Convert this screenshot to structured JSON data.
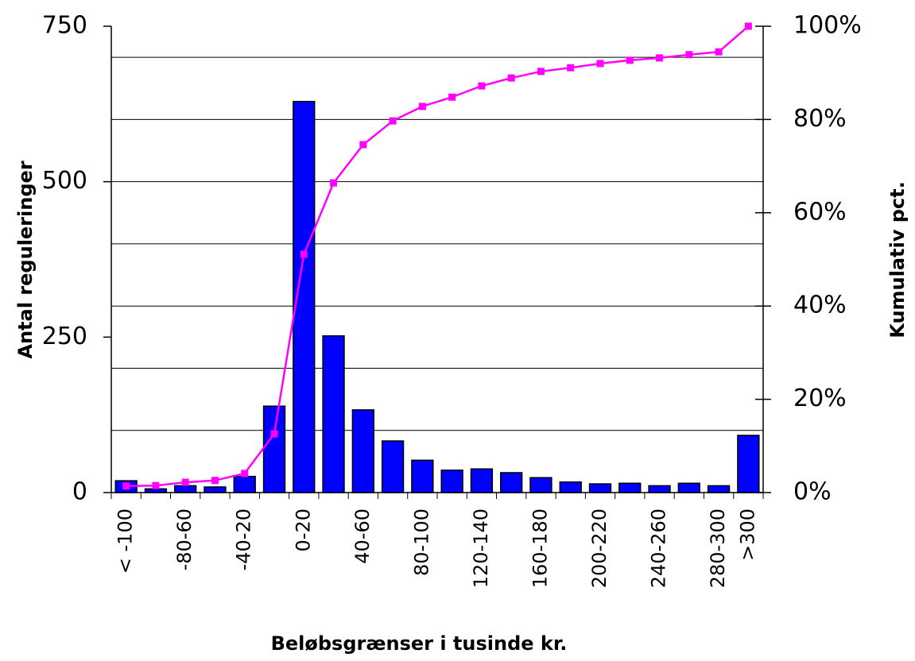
{
  "chart_data": {
    "type": "combo",
    "xlabel": "Beløbsgrænser i tusinde kr.",
    "ylabel": "Antal reguleringer",
    "y2label": "Kumulativ pct.",
    "categories": [
      "< -100",
      null,
      "-80-60",
      null,
      "-40-20",
      null,
      "0-20",
      null,
      "40-60",
      null,
      "80-100",
      null,
      "120-140",
      null,
      "160-180",
      null,
      "200-220",
      null,
      "240-260",
      null,
      "280-300",
      ">300"
    ],
    "series": [
      {
        "type": "bar",
        "color": "#0000ff",
        "values": [
          19,
          6,
          11,
          9,
          26,
          139,
          629,
          252,
          133,
          83,
          52,
          36,
          38,
          32,
          24,
          17,
          14,
          15,
          11,
          15,
          11,
          92
        ]
      },
      {
        "type": "line",
        "axis": "y2",
        "color": "#ff00ff",
        "values": [
          1.4,
          1.5,
          2.2,
          2.6,
          4.1,
          12.6,
          51.1,
          66.4,
          74.6,
          79.7,
          82.8,
          84.8,
          87.2,
          88.9,
          90.3,
          91.1,
          92.0,
          92.7,
          93.2,
          93.9,
          94.5,
          100
        ]
      }
    ],
    "ylim": [
      0,
      750
    ],
    "yticks": [
      0,
      250,
      500,
      750
    ],
    "ygrid": [
      100,
      200,
      300,
      400,
      500,
      600,
      700
    ],
    "y2lim": [
      0,
      100
    ],
    "y2ticks": [
      {
        "value": 0,
        "label": "0%"
      },
      {
        "value": 20,
        "label": "20%"
      },
      {
        "value": 40,
        "label": "40%"
      },
      {
        "value": 60,
        "label": "60%"
      },
      {
        "value": 80,
        "label": "80%"
      },
      {
        "value": 100,
        "label": "100%"
      }
    ]
  }
}
